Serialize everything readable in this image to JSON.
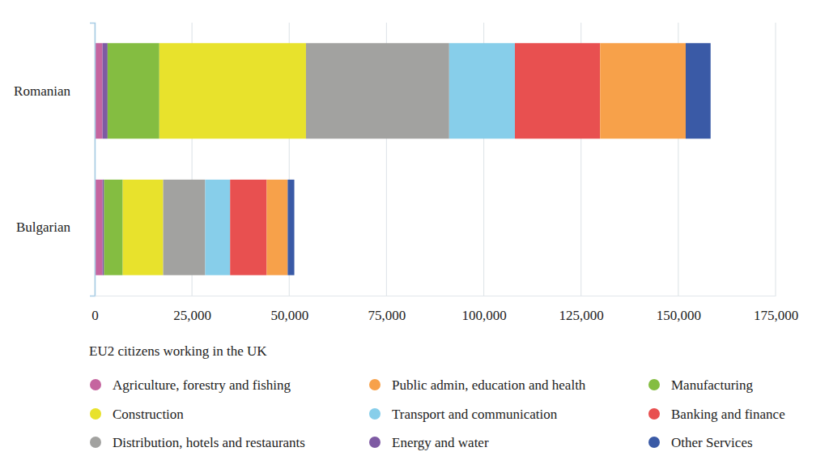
{
  "chart_data": {
    "type": "bar",
    "orientation": "horizontal",
    "stacked": true,
    "grid": true,
    "legend": "bottom",
    "x_label": "EU2 citizens working in the UK",
    "categories": [
      "Romanian",
      "Bulgarian"
    ],
    "xlim": [
      0,
      175000
    ],
    "xticks": [
      0,
      {
        "value": 25000,
        "label": "25,000"
      },
      {
        "value": 50000,
        "label": "50,000"
      },
      {
        "value": 75000,
        "label": "75,000"
      },
      {
        "value": 100000,
        "label": "100,000"
      },
      {
        "value": 125000,
        "label": "125,000"
      },
      {
        "value": 150000,
        "label": "150,000"
      },
      {
        "value": 175000,
        "label": "175,000"
      }
    ],
    "series": [
      {
        "name": "Agriculture, forestry and fishing",
        "color": "#c5659f",
        "values": [
          2000,
          2000
        ]
      },
      {
        "name": "Energy and water",
        "color": "#7e5aa3",
        "values": [
          1300,
          400
        ]
      },
      {
        "name": "Manufacturing",
        "color": "#84bd41",
        "values": [
          13300,
          4800
        ]
      },
      {
        "name": "Construction",
        "color": "#e8e22c",
        "values": [
          37700,
          10400
        ]
      },
      {
        "name": "Distribution, hotels and restaurants",
        "color": "#a2a2a0",
        "values": [
          36800,
          10800
        ]
      },
      {
        "name": "Transport and communication",
        "color": "#87ceea",
        "values": [
          16900,
          6400
        ]
      },
      {
        "name": "Banking and finance",
        "color": "#e85050",
        "values": [
          21900,
          9400
        ]
      },
      {
        "name": "Public admin, education and health",
        "color": "#f7a14a",
        "values": [
          22000,
          5400
        ]
      },
      {
        "name": "Other Services",
        "color": "#3a5aa6",
        "values": [
          6400,
          1700
        ]
      }
    ]
  }
}
